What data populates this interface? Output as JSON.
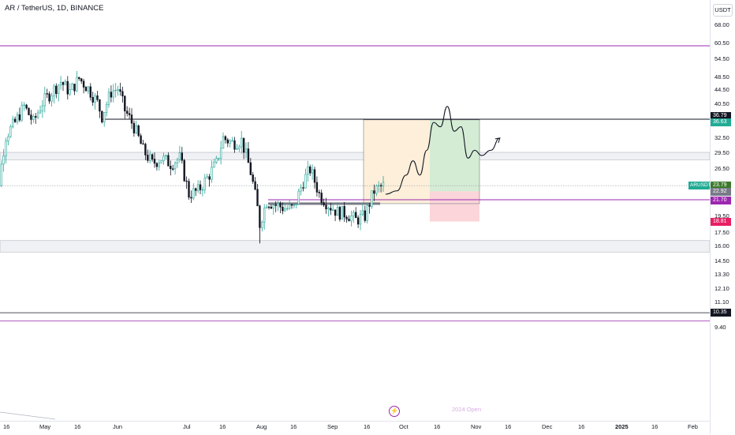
{
  "header": {
    "title": "AR / TetherUS, 1D, BINANCE",
    "currency": "USDT"
  },
  "colors": {
    "up": "#26a69a",
    "down": "#131722",
    "purple_line": "#9c27b0",
    "resistance_line": "#131722",
    "entry_zone": "#fdefd9",
    "target_zone": "#d4ecd4",
    "stop_zone": "#fbd5d9",
    "zone_band": "#eff1f4",
    "current_badge": "#3b7a2a",
    "stop_badge": "#e91e63",
    "resistance_badge": "#131722",
    "target_badge": "#22ab94",
    "purple_badge": "#9c27b0",
    "grey_badge": "#787b86"
  },
  "price_axis": {
    "scale": "log",
    "ticks": [
      "68.00",
      "60.50",
      "54.50",
      "48.50",
      "44.50",
      "40.50",
      "32.50",
      "29.50",
      "26.50",
      "19.50",
      "17.50",
      "16.00",
      "14.50",
      "13.30",
      "12.10",
      "11.10",
      "9.40"
    ]
  },
  "price_badges": {
    "resistance": "36.79",
    "target": "36.63",
    "symbol": "ARUSDT",
    "current": "23.79",
    "entry": "22.92",
    "support": "21.70",
    "stop": "18.81",
    "low_line": "10.35"
  },
  "time_axis": {
    "labels": [
      "16",
      "May",
      "16",
      "Jun",
      "Jul",
      "16",
      "Aug",
      "16",
      "Sep",
      "16",
      "Oct",
      "16",
      "Nov",
      "16",
      "Dec",
      "16",
      "2025",
      "16",
      "Feb"
    ]
  },
  "annotations": {
    "open_label": "2024 Open",
    "bolt_icon": "lightning-bolt-icon"
  },
  "levels": {
    "top_purple": 59.5,
    "resistance": 36.79,
    "support": 21.7,
    "low_line": 10.35,
    "open_2024": 9.8
  },
  "zones": {
    "resistance_band": [
      28.2,
      29.6
    ],
    "support_band": [
      15.4,
      16.6
    ],
    "position": {
      "entry": 22.92,
      "stop": 18.81,
      "target": 36.63,
      "base": 21.15
    }
  },
  "chart_data": {
    "type": "candlestick",
    "symbol": "AR / TetherUS",
    "interval": "1D",
    "exchange": "BINANCE",
    "y_scale": "log",
    "ylim": [
      9.2,
      74
    ],
    "path_keypoints": [
      [
        "2024-04-08",
        27.5
      ],
      [
        "2024-04-12",
        21.5
      ],
      [
        "2024-04-16",
        33
      ],
      [
        "2024-04-20",
        36
      ],
      [
        "2024-04-24",
        40
      ],
      [
        "2024-04-28",
        36
      ],
      [
        "2024-05-02",
        41
      ],
      [
        "2024-05-06",
        44
      ],
      [
        "2024-05-10",
        47
      ],
      [
        "2024-05-14",
        44
      ],
      [
        "2024-05-18",
        48
      ],
      [
        "2024-05-22",
        45
      ],
      [
        "2024-05-26",
        41
      ],
      [
        "2024-05-28",
        37.5
      ],
      [
        "2024-06-01",
        44
      ],
      [
        "2024-06-04",
        45
      ],
      [
        "2024-06-07",
        39
      ],
      [
        "2024-06-11",
        35
      ],
      [
        "2024-06-15",
        30
      ],
      [
        "2024-06-19",
        27.5
      ],
      [
        "2024-06-23",
        28.5
      ],
      [
        "2024-06-27",
        27.5
      ],
      [
        "2024-07-01",
        28.5
      ],
      [
        "2024-07-05",
        22.5
      ],
      [
        "2024-07-09",
        23
      ],
      [
        "2024-07-13",
        25
      ],
      [
        "2024-07-17",
        27.5
      ],
      [
        "2024-07-20",
        32.5
      ],
      [
        "2024-07-24",
        31.5
      ],
      [
        "2024-07-28",
        32
      ],
      [
        "2024-08-01",
        26
      ],
      [
        "2024-08-04",
        20.5
      ],
      [
        "2024-08-05",
        18.5
      ],
      [
        "2024-08-08",
        21.5
      ],
      [
        "2024-08-12",
        21
      ],
      [
        "2024-08-16",
        20.5
      ],
      [
        "2024-08-20",
        20.5
      ],
      [
        "2024-08-24",
        24.5
      ],
      [
        "2024-08-27",
        26.5
      ],
      [
        "2024-08-31",
        22.5
      ],
      [
        "2024-09-04",
        21
      ],
      [
        "2024-09-08",
        20
      ],
      [
        "2024-09-12",
        19.8
      ],
      [
        "2024-09-16",
        19
      ],
      [
        "2024-09-20",
        19.5
      ],
      [
        "2024-09-24",
        23
      ],
      [
        "2024-09-28",
        23.8
      ]
    ],
    "projection": [
      [
        "2024-09-29",
        22.5
      ],
      [
        "2024-10-04",
        23
      ],
      [
        "2024-10-08",
        25.5
      ],
      [
        "2024-10-11",
        28
      ],
      [
        "2024-10-14",
        25.5
      ],
      [
        "2024-10-17",
        30
      ],
      [
        "2024-10-20",
        36
      ],
      [
        "2024-10-23",
        35
      ],
      [
        "2024-10-26",
        40
      ],
      [
        "2024-10-29",
        34
      ],
      [
        "2024-11-01",
        35
      ],
      [
        "2024-11-04",
        28.5
      ],
      [
        "2024-11-07",
        30
      ],
      [
        "2024-11-10",
        29
      ],
      [
        "2024-11-14",
        30
      ],
      [
        "2024-11-18",
        32.5
      ]
    ]
  }
}
